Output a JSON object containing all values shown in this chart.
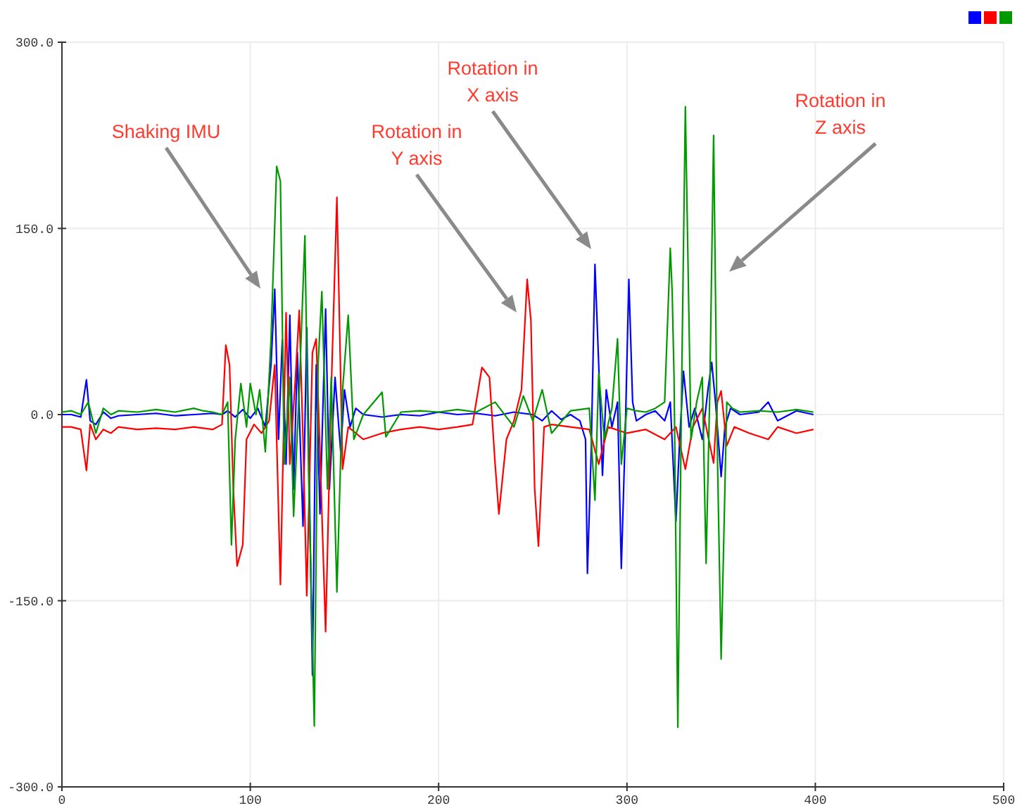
{
  "chart_data": {
    "type": "line",
    "xlim": [
      0,
      500
    ],
    "xticks": [
      0,
      100,
      200,
      300,
      400,
      500
    ],
    "ylim": [
      -300,
      300
    ],
    "yticks": [
      {
        "value": -300,
        "label": "-300.0"
      },
      {
        "value": -150,
        "label": "-150.0"
      },
      {
        "value": 0,
        "label": "0.0"
      },
      {
        "value": 150,
        "label": "150.0"
      },
      {
        "value": 300,
        "label": "300.0"
      }
    ],
    "grid": true,
    "line_style": "solid",
    "marker": "none",
    "annotations": [
      "Shaking IMU",
      "Rotation in\nY axis",
      "Rotation in\nX axis",
      "Rotation in\nZ axis"
    ],
    "series": [
      {
        "color": "#0000ff",
        "x": [
          0,
          5,
          10,
          13,
          15,
          18,
          22,
          26,
          30,
          40,
          50,
          60,
          70,
          80,
          85,
          88,
          92,
          96,
          100,
          104,
          108,
          111,
          113,
          115,
          117,
          119,
          121,
          123,
          125,
          128,
          130,
          133,
          135,
          137,
          140,
          142,
          145,
          148,
          150,
          153,
          156,
          160,
          170,
          180,
          190,
          200,
          210,
          220,
          230,
          240,
          250,
          255,
          260,
          265,
          270,
          275,
          278,
          279,
          281,
          283,
          285,
          287,
          289,
          292,
          295,
          297,
          299,
          301,
          303,
          305,
          310,
          315,
          320,
          323,
          326,
          328,
          330,
          333,
          336,
          340,
          343,
          345,
          347,
          350,
          352,
          355,
          360,
          370,
          375,
          380,
          390,
          399
        ],
        "values": [
          0,
          0,
          -2,
          28,
          -5,
          -8,
          2,
          -3,
          -1,
          0,
          1,
          -1,
          0,
          1,
          0,
          3,
          -2,
          4,
          -3,
          5,
          -10,
          40,
          101,
          -20,
          60,
          -40,
          80,
          -60,
          50,
          -90,
          70,
          -210,
          40,
          -80,
          85,
          -60,
          30,
          -30,
          20,
          -10,
          5,
          0,
          -2,
          0,
          -1,
          2,
          0,
          1,
          -1,
          2,
          0,
          -5,
          3,
          -4,
          0,
          -5,
          -20,
          -128,
          -30,
          121,
          40,
          -49,
          20,
          -10,
          10,
          -124,
          -20,
          109,
          10,
          -5,
          0,
          3,
          -5,
          10,
          -86,
          -20,
          35,
          -10,
          5,
          -20,
          20,
          42,
          10,
          -50,
          -10,
          5,
          0,
          2,
          10,
          -5,
          3,
          0
        ]
      },
      {
        "color": "#ff0000",
        "x": [
          0,
          5,
          10,
          13,
          15,
          18,
          22,
          26,
          30,
          40,
          50,
          60,
          70,
          80,
          85,
          87,
          89,
          91,
          93,
          96,
          98,
          102,
          106,
          110,
          113,
          116,
          119,
          121,
          124,
          126,
          128,
          130,
          133,
          135,
          137,
          140,
          143,
          146,
          149,
          152,
          156,
          160,
          170,
          180,
          190,
          200,
          210,
          218,
          223,
          227,
          230,
          232,
          236,
          240,
          244,
          247,
          249,
          251,
          253,
          256,
          260,
          270,
          280,
          285,
          290,
          300,
          310,
          320,
          326,
          331,
          335,
          340,
          346,
          348,
          350,
          353,
          357,
          365,
          375,
          380,
          390,
          399
        ],
        "values": [
          -10,
          -10,
          -12,
          -45,
          -8,
          -20,
          -12,
          -15,
          -10,
          -12,
          -11,
          -12,
          -10,
          -12,
          -8,
          56,
          40,
          -60,
          -122,
          -105,
          -20,
          -8,
          -15,
          -5,
          40,
          -137,
          82,
          -40,
          30,
          84,
          -20,
          -146,
          50,
          61,
          -30,
          -175,
          20,
          175,
          -44,
          -10,
          -15,
          -20,
          -15,
          -12,
          -10,
          -12,
          -10,
          -8,
          38,
          30,
          -40,
          -80,
          -20,
          -5,
          20,
          109,
          76,
          -60,
          -106,
          -10,
          -8,
          -10,
          -12,
          -40,
          -10,
          -15,
          -12,
          -20,
          -10,
          -44,
          -10,
          5,
          -39,
          10,
          19,
          -25,
          -10,
          -15,
          -20,
          -10,
          -15,
          -12
        ]
      },
      {
        "color": "#009900",
        "x": [
          0,
          5,
          10,
          14,
          18,
          22,
          26,
          30,
          40,
          50,
          60,
          70,
          75,
          80,
          85,
          88,
          90,
          92,
          95,
          98,
          100,
          103,
          105,
          108,
          111,
          114,
          116,
          118,
          121,
          123,
          126,
          129,
          131,
          134,
          136,
          138,
          141,
          143,
          146,
          149,
          152,
          155,
          160,
          170,
          172,
          180,
          190,
          200,
          210,
          220,
          230,
          240,
          245,
          250,
          255,
          260,
          270,
          280,
          283,
          285,
          288,
          292,
          295,
          297,
          300,
          305,
          310,
          315,
          320,
          323,
          324,
          325,
          327,
          329,
          331,
          334,
          337,
          340,
          342,
          344,
          346,
          348,
          350,
          353,
          356,
          360,
          370,
          380,
          390,
          399
        ],
        "values": [
          2,
          3,
          0,
          10,
          -15,
          5,
          0,
          3,
          2,
          4,
          2,
          5,
          3,
          2,
          0,
          10,
          -105,
          -20,
          25,
          -10,
          25,
          0,
          20,
          -30,
          60,
          200,
          188,
          -40,
          30,
          -82,
          20,
          144,
          -50,
          -251,
          40,
          99,
          -60,
          30,
          -143,
          20,
          80,
          -20,
          0,
          18,
          -18,
          2,
          3,
          2,
          4,
          2,
          10,
          -10,
          15,
          -5,
          20,
          -15,
          3,
          5,
          -69,
          33,
          -20,
          5,
          61,
          -40,
          5,
          3,
          2,
          5,
          10,
          134,
          99,
          30,
          -252,
          20,
          248,
          -20,
          10,
          30,
          -120,
          20,
          225,
          -30,
          -197,
          10,
          5,
          2,
          3,
          2,
          4,
          2
        ]
      }
    ]
  }
}
